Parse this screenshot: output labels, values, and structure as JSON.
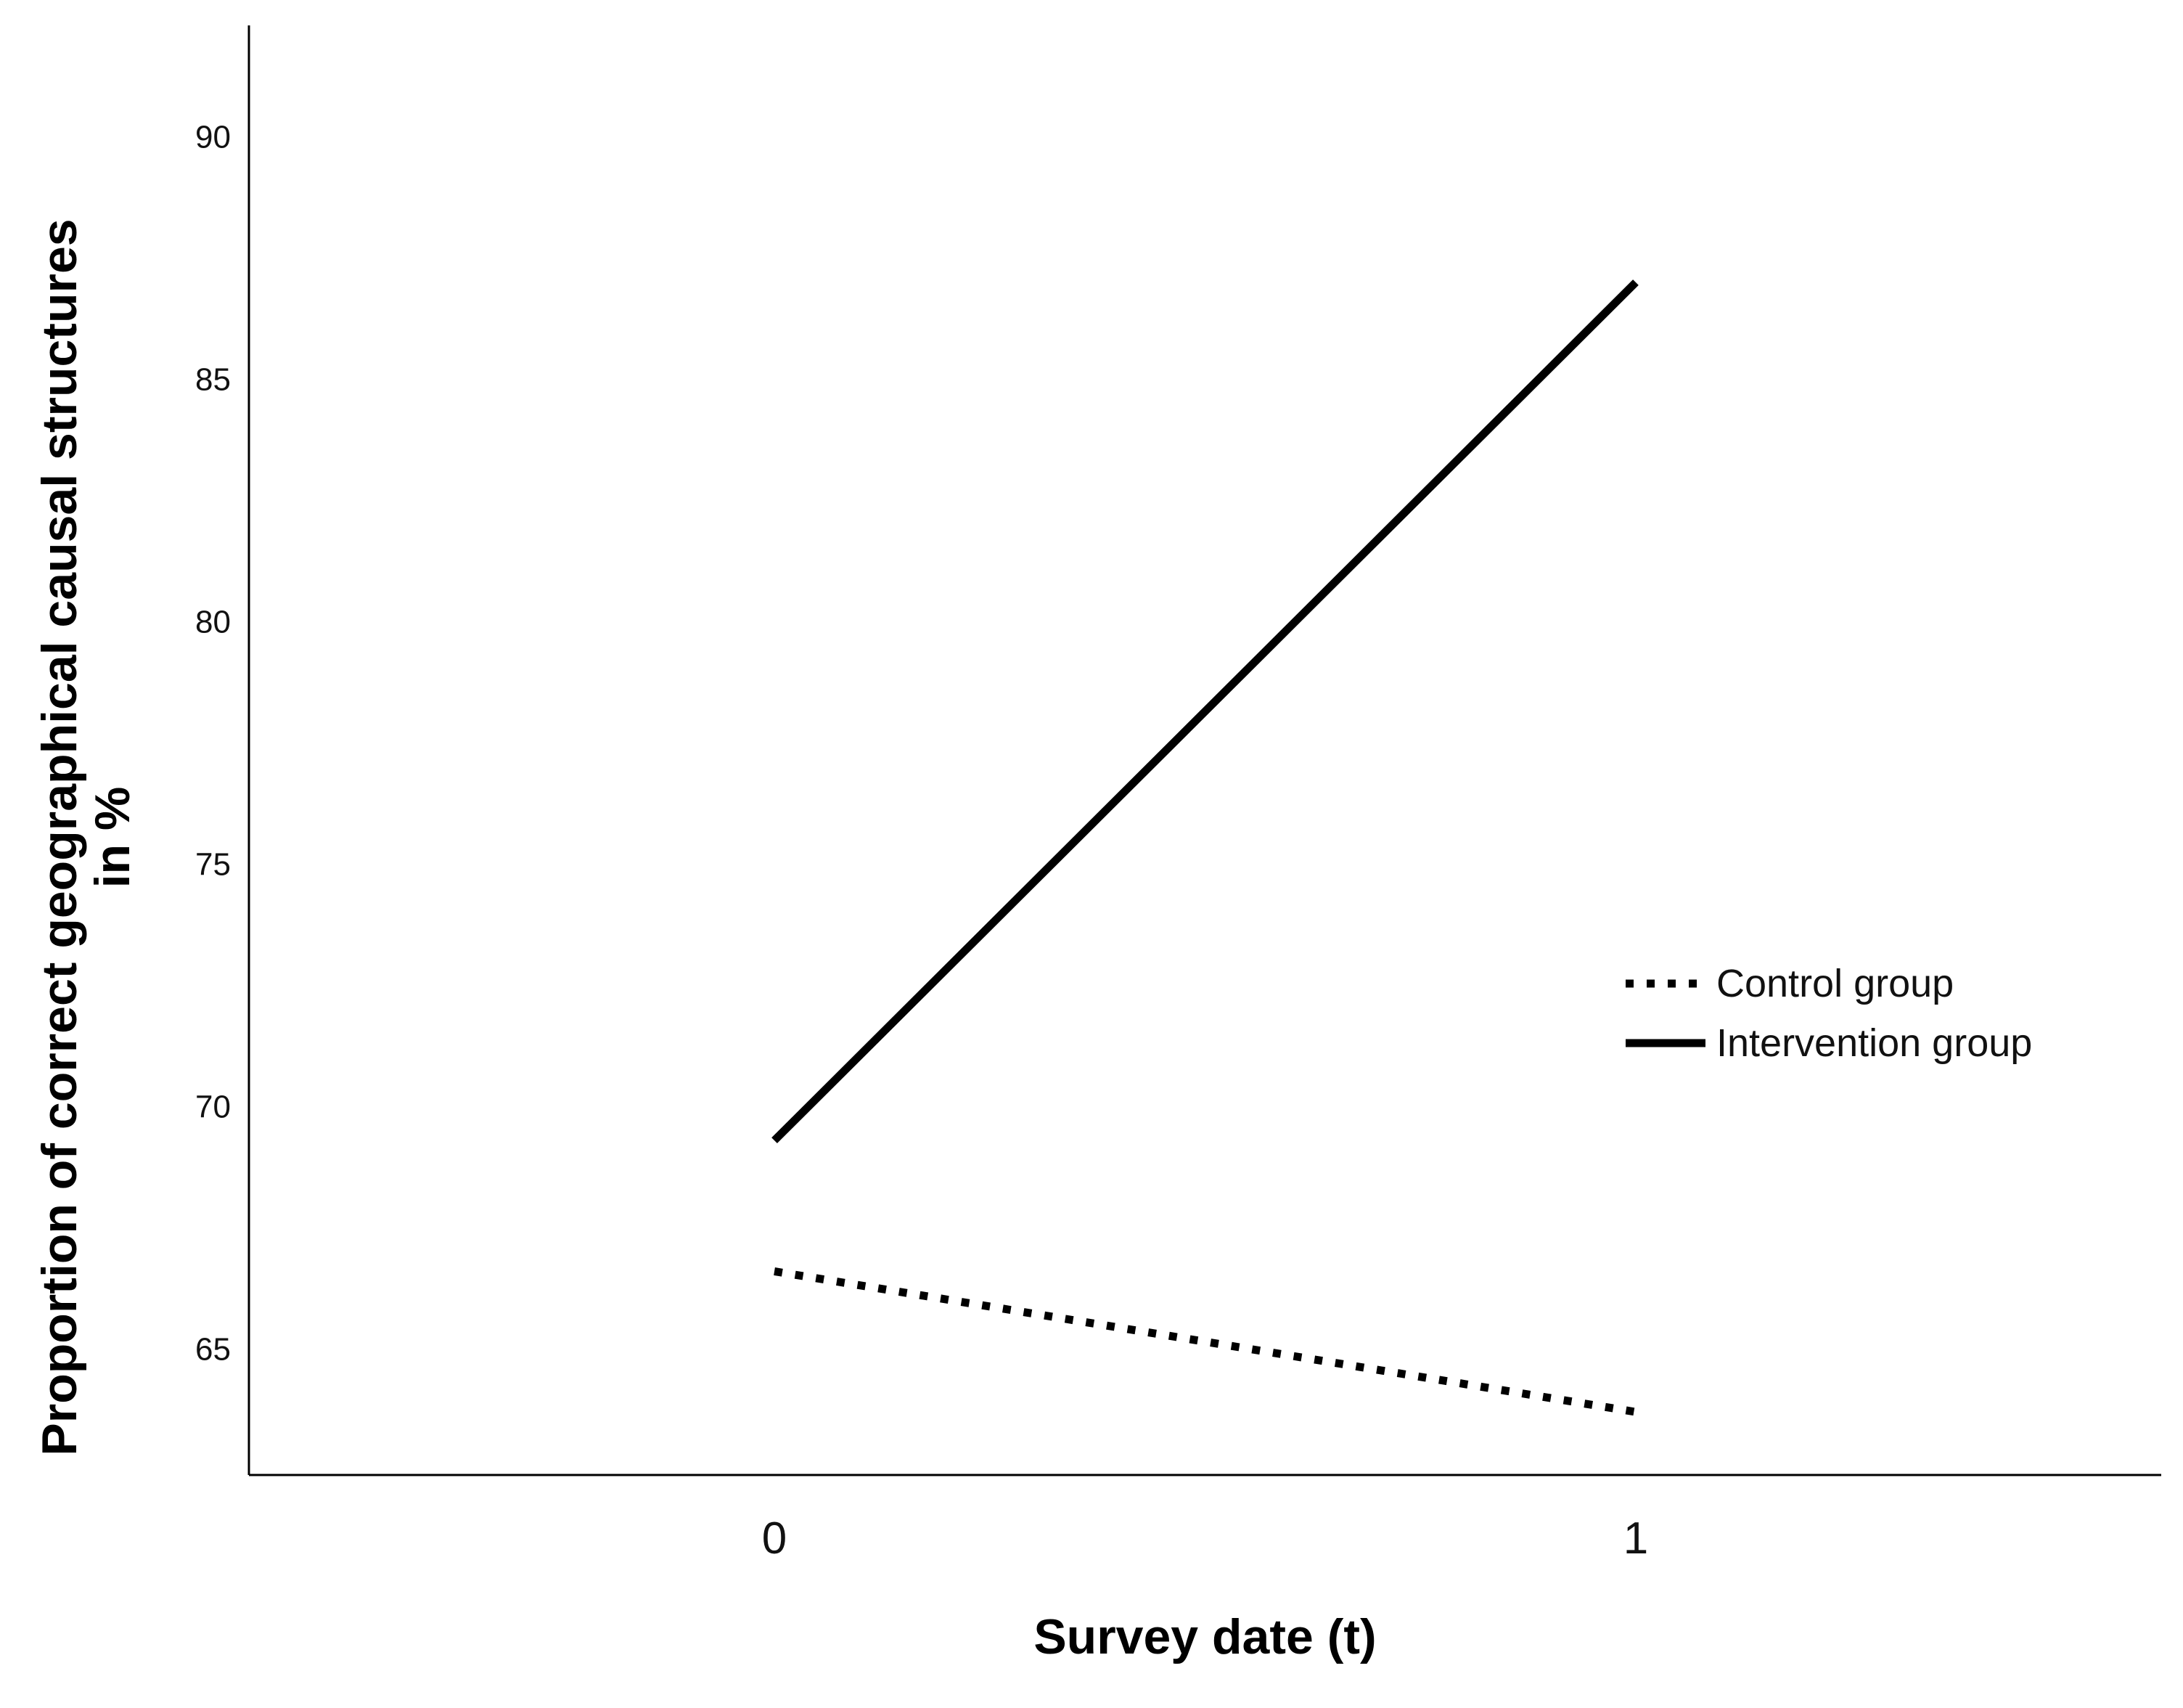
{
  "chart_data": {
    "type": "line",
    "title": "",
    "xlabel": "Survey date (t)",
    "ylabel_lines": [
      "Proportion of correct geographical causal structures",
      "in %"
    ],
    "x": [
      0,
      1
    ],
    "x_ticks": [
      "0",
      "1"
    ],
    "xlim": [
      -0.61,
      1.61
    ],
    "y_ticks": [
      "65",
      "70",
      "75",
      "80",
      "85",
      "90"
    ],
    "ylim": [
      62.4,
      92.3
    ],
    "grid": false,
    "legend_position": "right",
    "series": [
      {
        "name": "Control group",
        "values": [
          66.6,
          63.7
        ],
        "style": "dotted",
        "color": "#000000"
      },
      {
        "name": "Intervention group",
        "values": [
          69.3,
          87.0
        ],
        "style": "solid",
        "color": "#000000"
      }
    ]
  }
}
